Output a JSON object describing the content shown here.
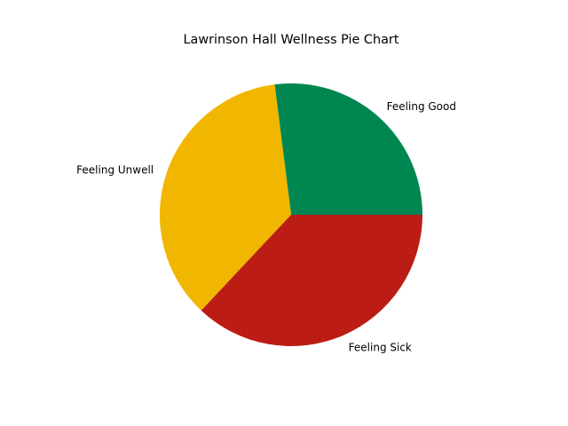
{
  "chart_data": {
    "type": "pie",
    "title": "Lawrinson Hall Wellness Pie Chart",
    "start_angle_deg": 0,
    "direction": "counterclockwise",
    "slices": [
      {
        "label": "Feeling Good",
        "value": 27,
        "color": "#008751"
      },
      {
        "label": "Feeling Unwell",
        "value": 36,
        "color": "#F0B600"
      },
      {
        "label": "Feeling Sick",
        "value": 37,
        "color": "#BB1C14"
      }
    ]
  }
}
